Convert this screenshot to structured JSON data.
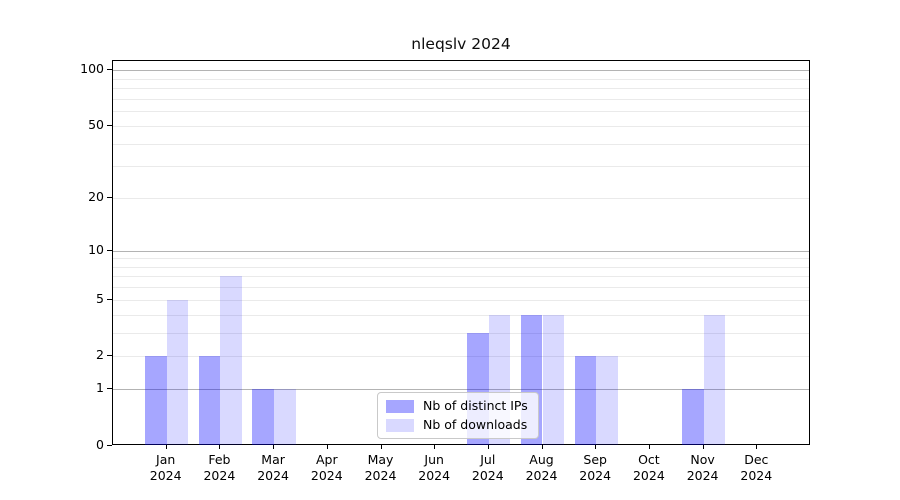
{
  "chart_data": {
    "type": "bar",
    "title": "nleqslv 2024",
    "x_axis": {
      "months": [
        "Jan",
        "Feb",
        "Mar",
        "Apr",
        "May",
        "Jun",
        "Jul",
        "Aug",
        "Sep",
        "Oct",
        "Nov",
        "Dec"
      ],
      "year": "2024"
    },
    "y_axis": {
      "scale": "log1p",
      "tick_labels": [
        100,
        50,
        20,
        10,
        5,
        2,
        1,
        0
      ],
      "range": [
        0,
        110
      ],
      "major_gridlines": [
        1,
        10,
        100
      ],
      "minor_gridlines": [
        2,
        3,
        4,
        5,
        6,
        7,
        8,
        9,
        20,
        30,
        40,
        50,
        60,
        70,
        80,
        90
      ],
      "grid": "on"
    },
    "series": [
      {
        "name": "Nb of distinct IPs",
        "color": "rgba(0, 0, 255, 0.35)",
        "values": [
          2,
          2,
          1,
          0,
          0,
          0,
          3,
          4,
          2,
          0,
          1,
          0
        ]
      },
      {
        "name": "Nb of downloads",
        "color": "rgba(0, 0, 255, 0.15)",
        "values": [
          5,
          7,
          1,
          0,
          0,
          0,
          4,
          4,
          2,
          0,
          4,
          0
        ]
      }
    ],
    "legend": {
      "position": "lower center"
    }
  },
  "colors": {
    "grid_major": "#b3b3b3",
    "grid_minor": "#eaeaea",
    "spine": "#000000",
    "background": "#ffffff"
  }
}
